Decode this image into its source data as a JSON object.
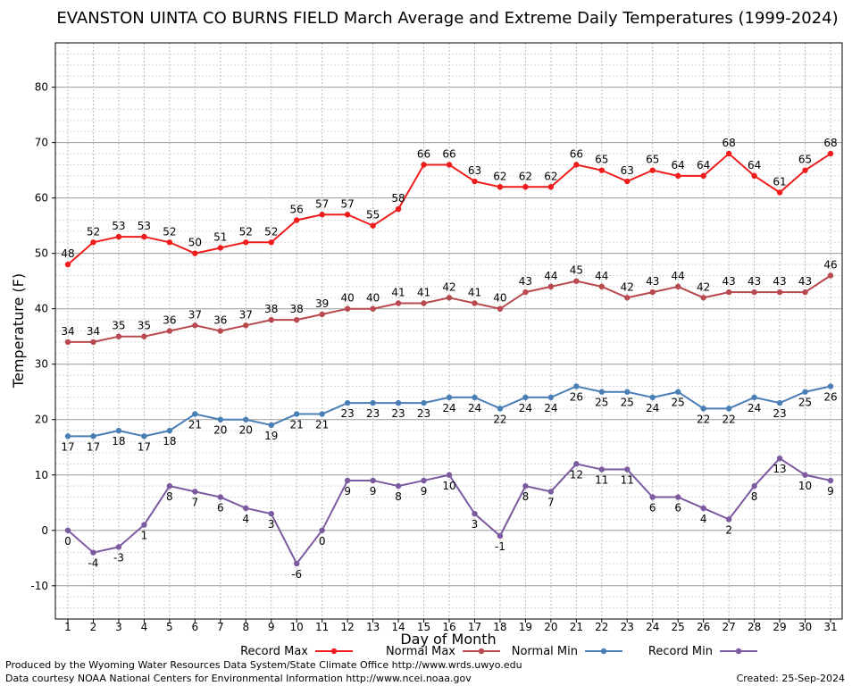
{
  "chart_data": {
    "type": "line",
    "title": "EVANSTON UINTA CO BURNS FIELD March Average and Extreme Daily Temperatures (1999-2024)",
    "xlabel": "Day of Month",
    "ylabel": "Temperature (F)",
    "x": [
      1,
      2,
      3,
      4,
      5,
      6,
      7,
      8,
      9,
      10,
      11,
      12,
      13,
      14,
      15,
      16,
      17,
      18,
      19,
      20,
      21,
      22,
      23,
      24,
      25,
      26,
      27,
      28,
      29,
      30,
      31
    ],
    "ylim": [
      -16,
      88
    ],
    "yticks": [
      -10,
      0,
      10,
      20,
      30,
      40,
      50,
      60,
      70,
      80
    ],
    "grid": true,
    "series": [
      {
        "name": "Record Max",
        "color": "#ee1c1c",
        "values": [
          48,
          52,
          53,
          53,
          52,
          50,
          51,
          52,
          52,
          56,
          57,
          57,
          55,
          58,
          66,
          66,
          63,
          62,
          62,
          62,
          66,
          65,
          63,
          65,
          64,
          64,
          68,
          64,
          61,
          65,
          68
        ]
      },
      {
        "name": "Normal Max",
        "color": "#b84a4f",
        "values": [
          34,
          34,
          35,
          35,
          36,
          37,
          36,
          37,
          38,
          38,
          39,
          40,
          40,
          41,
          41,
          42,
          41,
          40,
          43,
          44,
          45,
          44,
          42,
          43,
          44,
          42,
          43,
          43,
          43,
          43,
          46
        ]
      },
      {
        "name": "Normal Min",
        "color": "#4a7fb5",
        "values": [
          17,
          17,
          18,
          17,
          18,
          21,
          20,
          20,
          19,
          21,
          21,
          23,
          23,
          23,
          23,
          24,
          24,
          22,
          24,
          24,
          26,
          25,
          25,
          24,
          25,
          22,
          22,
          24,
          23,
          25,
          26
        ]
      },
      {
        "name": "Record Min",
        "color": "#7c5aa0",
        "values": [
          0,
          -4,
          -3,
          1,
          8,
          7,
          6,
          4,
          3,
          -6,
          0,
          9,
          9,
          8,
          9,
          10,
          3,
          -1,
          8,
          7,
          12,
          11,
          11,
          6,
          6,
          4,
          2,
          8,
          13,
          10,
          9
        ]
      }
    ]
  },
  "footer": {
    "produced_by": "Produced by the Wyoming Water Resources Data System/State Climate Office http://www.wrds.uwyo.edu",
    "courtesy": "Data courtesy NOAA National Centers for Environmental Information http://www.ncei.noaa.gov",
    "created": "Created: 25-Sep-2024"
  }
}
